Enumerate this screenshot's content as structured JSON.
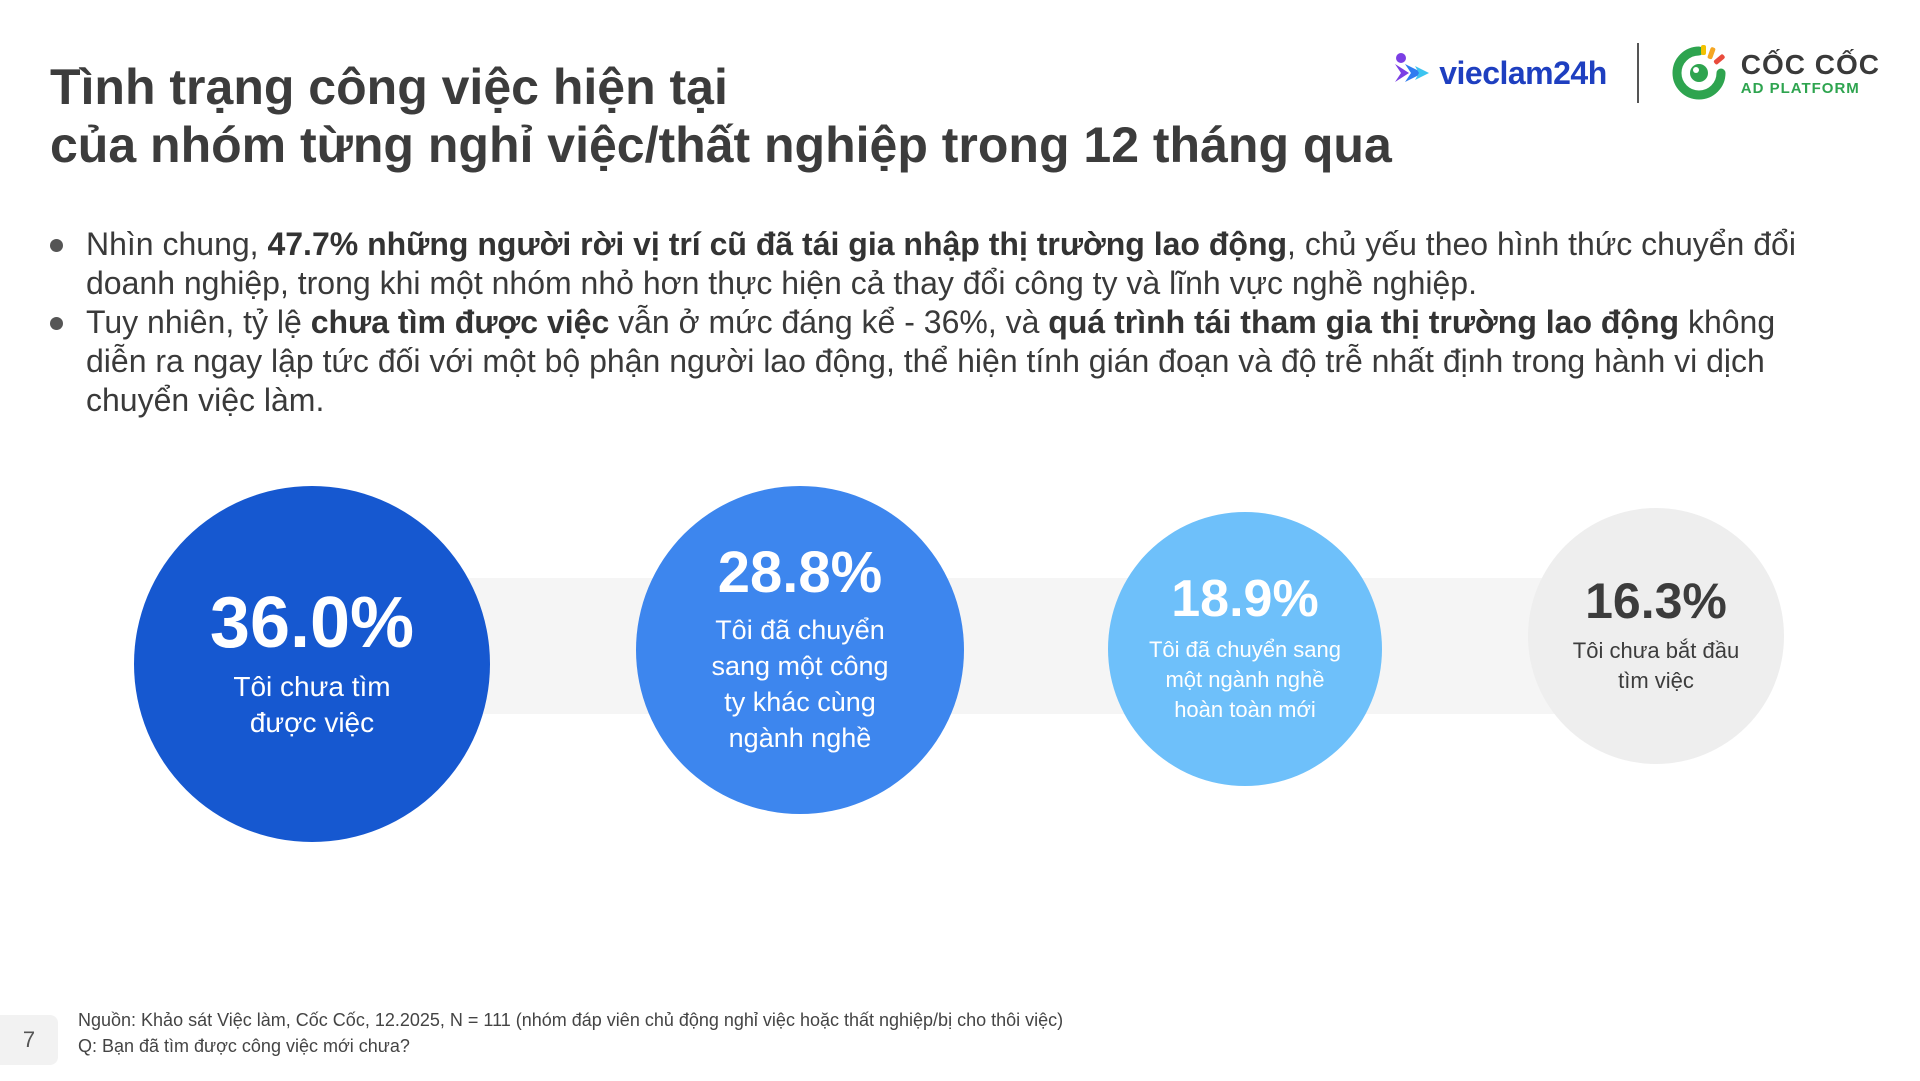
{
  "title": {
    "line1": "Tình trạng công việc hiện tại",
    "line2": "của nhóm từng nghỉ việc/thất nghiệp trong 12 tháng qua"
  },
  "logos": {
    "vieclam": "vieclam24h",
    "coccoc_name": "CỐC CỐC",
    "coccoc_sub": "AD PLATFORM"
  },
  "bullets": [
    {
      "parts": [
        {
          "text": "Nhìn chung, ",
          "bold": false
        },
        {
          "text": "47.7% những người rời vị trí cũ đã tái gia nhập thị trường lao động",
          "bold": true
        },
        {
          "text": ", chủ yếu theo hình thức chuyển đổi doanh nghiệp, trong khi một nhóm nhỏ hơn thực hiện cả thay đổi công ty và lĩnh vực nghề nghiệp.",
          "bold": false
        }
      ]
    },
    {
      "parts": [
        {
          "text": "Tuy nhiên, tỷ lệ ",
          "bold": false
        },
        {
          "text": "chưa tìm được việc",
          "bold": true
        },
        {
          "text": " vẫn ở mức đáng kể - 36%, và ",
          "bold": false
        },
        {
          "text": "quá trình tái tham gia thị trường lao động",
          "bold": true
        },
        {
          "text": " không diễn ra ngay lập tức đối với một bộ phận người lao động, thể hiện tính gián đoạn và độ trễ nhất định trong hành vi dịch chuyển việc làm.",
          "bold": false
        }
      ]
    }
  ],
  "chart_data": {
    "type": "bubble",
    "title": "Tình trạng công việc hiện tại",
    "categories": [
      "Tôi chưa tìm được việc",
      "Tôi đã chuyển sang một công ty khác cùng ngành nghề",
      "Tôi đã chuyển sang một ngành nghề hoàn toàn mới",
      "Tôi chưa bắt đầu tìm việc"
    ],
    "values": [
      36.0,
      28.8,
      18.9,
      16.3
    ],
    "unit": "%",
    "items": [
      {
        "value_label": "36.0%",
        "label_lines": [
          "Tôi chưa tìm",
          "được việc"
        ],
        "color": "#1658d0",
        "text_color": "#ffffff"
      },
      {
        "value_label": "28.8%",
        "label_lines": [
          "Tôi đã chuyển",
          "sang một công",
          "ty khác cùng",
          "ngành nghề"
        ],
        "color": "#3d86ee",
        "text_color": "#ffffff"
      },
      {
        "value_label": "18.9%",
        "label_lines": [
          "Tôi đã chuyển sang",
          "một ngành nghề",
          "hoàn toàn mới"
        ],
        "color": "#6ec0fa",
        "text_color": "#ffffff"
      },
      {
        "value_label": "16.3%",
        "label_lines": [
          "Tôi chưa bắt đầu",
          "tìm việc"
        ],
        "color": "#eeeeee",
        "text_color": "#3c3c3c"
      }
    ]
  },
  "footer": {
    "page_number": "7",
    "source": "Nguồn: Khảo sát Việc làm, Cốc Cốc, 12.2025, N = 111 (nhóm đáp viên chủ động nghỉ việc hoặc thất nghiệp/bị cho thôi việc)",
    "question": "Q: Bạn đã tìm được công việc mới chưa?"
  }
}
